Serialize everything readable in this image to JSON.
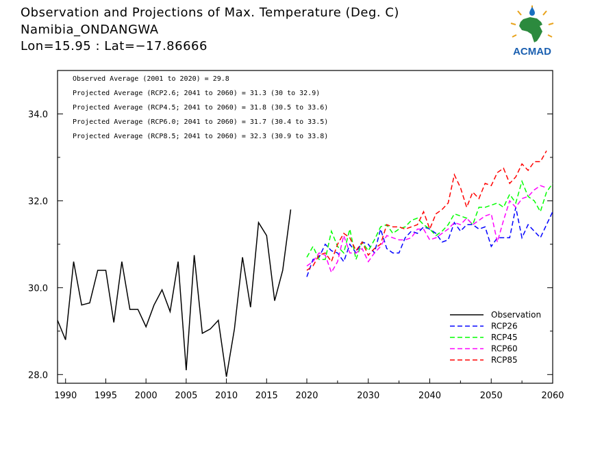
{
  "header": {
    "title": "Observation and Projections of Max. Temperature (Deg. C)",
    "location": "Namibia_ONDANGWA",
    "coords": "Lon=15.95 : Lat=−17.86666",
    "logo_text": "ACMAD"
  },
  "annotations": [
    "Observed Average (2001 to 2020) = 29.8",
    "Projected Average (RCP2.6; 2041 to 2060) = 31.3 (30 to 32.9)",
    "Projected Average (RCP4.5; 2041 to 2060) = 31.8 (30.5 to 33.6)",
    "Projected Average (RCP6.0; 2041 to 2060) = 31.7 (30.4 to 33.5)",
    "Projected Average (RCP8.5; 2041 to 2060) = 32.3 (30.9 to 33.8)"
  ],
  "chart_data": {
    "type": "line",
    "title": "Observation and Projections of Max. Temperature (Deg. C)",
    "xlim": [
      1989,
      2060
    ],
    "ylim": [
      27.8,
      35.0
    ],
    "x_ticks": [
      1990,
      1995,
      2000,
      2005,
      2010,
      2015,
      2020,
      2030,
      2040,
      2050,
      2060
    ],
    "y_ticks": [
      28.0,
      30.0,
      32.0,
      34.0
    ],
    "y_tick_labels": [
      "28.0",
      "30.0",
      "32.0",
      "34.0"
    ],
    "legend_position": "bottom-right",
    "series": [
      {
        "name": "Observation",
        "color": "#000000",
        "dash": "solid",
        "x": [
          1989,
          1990,
          1991,
          1992,
          1993,
          1994,
          1995,
          1996,
          1997,
          1998,
          1999,
          2000,
          2001,
          2002,
          2003,
          2004,
          2005,
          2006,
          2007,
          2008,
          2009,
          2010,
          2011,
          2012,
          2013,
          2014,
          2015,
          2016,
          2017,
          2018,
          2019
        ],
        "y": [
          29.25,
          28.8,
          30.6,
          29.6,
          29.65,
          30.4,
          30.4,
          29.2,
          30.6,
          29.5,
          29.5,
          29.1,
          29.6,
          29.95,
          29.45,
          30.6,
          28.1,
          30.75,
          28.95,
          29.05,
          29.25,
          27.95,
          29.05,
          30.7,
          29.55,
          31.5,
          31.2,
          29.7,
          30.4,
          31.8,
          null
        ]
      },
      {
        "name": "RCP26",
        "color": "#0000ff",
        "dash": "dashed",
        "x": [
          2020,
          2021,
          2022,
          2023,
          2024,
          2025,
          2026,
          2027,
          2028,
          2029,
          2030,
          2031,
          2032,
          2033,
          2034,
          2035,
          2036,
          2037,
          2038,
          2039,
          2040,
          2041,
          2042,
          2043,
          2044,
          2045,
          2046,
          2047,
          2048,
          2049,
          2050,
          2051,
          2052,
          2053,
          2054,
          2055,
          2056,
          2057,
          2058,
          2059,
          2060
        ],
        "y": [
          30.25,
          30.65,
          30.7,
          31.0,
          30.85,
          30.8,
          30.6,
          31.0,
          30.8,
          31.05,
          31.0,
          30.8,
          31.35,
          30.9,
          30.8,
          30.8,
          31.15,
          31.3,
          31.25,
          31.4,
          31.35,
          31.25,
          31.05,
          31.1,
          31.5,
          31.3,
          31.45,
          31.45,
          31.35,
          31.4,
          30.95,
          31.15,
          31.15,
          31.15,
          31.85,
          31.15,
          31.45,
          31.3,
          31.15,
          31.45,
          31.75
        ]
      },
      {
        "name": "RCP45",
        "color": "#00ff00",
        "dash": "dashed",
        "x": [
          2020,
          2021,
          2022,
          2023,
          2024,
          2025,
          2026,
          2027,
          2028,
          2029,
          2030,
          2031,
          2032,
          2033,
          2034,
          2035,
          2036,
          2037,
          2038,
          2039,
          2040,
          2041,
          2042,
          2043,
          2044,
          2045,
          2046,
          2047,
          2048,
          2049,
          2050,
          2051,
          2052,
          2053,
          2054,
          2055,
          2056,
          2057,
          2058,
          2059,
          2060
        ],
        "y": [
          30.7,
          30.95,
          30.65,
          30.65,
          31.3,
          30.95,
          30.8,
          31.35,
          30.65,
          31.05,
          30.85,
          31.1,
          31.4,
          31.45,
          31.25,
          31.35,
          31.4,
          31.55,
          31.6,
          31.45,
          31.35,
          31.2,
          31.3,
          31.45,
          31.7,
          31.65,
          31.6,
          31.45,
          31.85,
          31.85,
          31.9,
          31.95,
          31.85,
          32.15,
          31.95,
          32.45,
          32.1,
          32.0,
          31.75,
          32.2,
          32.4
        ]
      },
      {
        "name": "RCP60",
        "color": "#ff00ff",
        "dash": "dashed",
        "x": [
          2020,
          2021,
          2022,
          2023,
          2024,
          2025,
          2026,
          2027,
          2028,
          2029,
          2030,
          2031,
          2032,
          2033,
          2034,
          2035,
          2036,
          2037,
          2038,
          2039,
          2040,
          2041,
          2042,
          2043,
          2044,
          2045,
          2046,
          2047,
          2048,
          2049,
          2050,
          2051,
          2052,
          2053,
          2054,
          2055,
          2056,
          2057,
          2058,
          2059,
          2060
        ],
        "y": [
          30.5,
          30.6,
          30.8,
          30.75,
          30.35,
          30.6,
          31.2,
          30.8,
          30.8,
          30.9,
          30.6,
          30.8,
          30.95,
          31.2,
          31.15,
          31.1,
          31.1,
          31.15,
          31.35,
          31.35,
          31.1,
          31.15,
          31.25,
          31.35,
          31.5,
          31.45,
          31.6,
          31.45,
          31.55,
          31.65,
          31.7,
          31.05,
          31.55,
          32.0,
          31.85,
          32.05,
          32.1,
          32.25,
          32.35,
          32.3,
          null
        ]
      },
      {
        "name": "RCP85",
        "color": "#ff0000",
        "dash": "dashed",
        "x": [
          2020,
          2021,
          2022,
          2023,
          2024,
          2025,
          2026,
          2027,
          2028,
          2029,
          2030,
          2031,
          2032,
          2033,
          2034,
          2035,
          2036,
          2037,
          2038,
          2039,
          2040,
          2041,
          2042,
          2043,
          2044,
          2045,
          2046,
          2047,
          2048,
          2049,
          2050,
          2051,
          2052,
          2053,
          2054,
          2055,
          2056,
          2057,
          2058,
          2059,
          2060
        ],
        "y": [
          30.4,
          30.5,
          30.75,
          30.8,
          30.6,
          31.0,
          31.25,
          31.15,
          30.85,
          31.05,
          30.75,
          30.9,
          31.0,
          31.45,
          31.4,
          31.4,
          31.35,
          31.4,
          31.45,
          31.75,
          31.35,
          31.7,
          31.8,
          31.95,
          32.6,
          32.3,
          31.85,
          32.2,
          32.05,
          32.4,
          32.35,
          32.65,
          32.75,
          32.4,
          32.55,
          32.85,
          32.7,
          32.9,
          32.9,
          33.15,
          null
        ]
      }
    ]
  }
}
